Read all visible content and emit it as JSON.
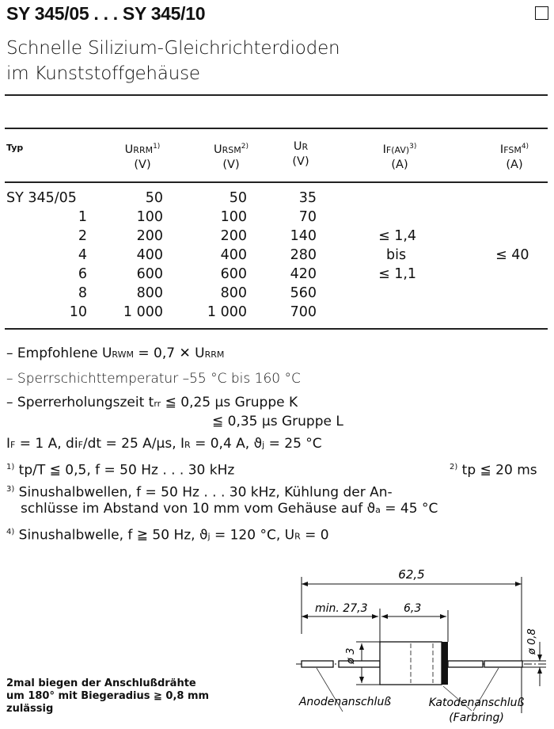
{
  "header": {
    "title": "SY 345/05 . . . SY 345/10",
    "subtitle_line1": "Schnelle Silizium-Gleichrichterdioden",
    "subtitle_line2": "im Kunststoffgehäuse"
  },
  "table": {
    "columns": [
      {
        "symbol": "Typ",
        "sub": "",
        "sup": "",
        "unit": ""
      },
      {
        "symbol": "U",
        "sub": "RRM",
        "sup": "1)",
        "unit": "(V)"
      },
      {
        "symbol": "U",
        "sub": "RSM",
        "sup": "2)",
        "unit": "(V)"
      },
      {
        "symbol": "U",
        "sub": "R",
        "sup": "",
        "unit": "(V)"
      },
      {
        "symbol": "I",
        "sub": "F(AV)",
        "sup": "3)",
        "unit": "(A)"
      },
      {
        "symbol": "I",
        "sub": "FSM",
        "sup": "4)",
        "unit": "(A)"
      }
    ],
    "rows": [
      {
        "typ": "SY 345/05",
        "urrm": "50",
        "ursm": "50",
        "ur": "35"
      },
      {
        "typ": "1",
        "urrm": "100",
        "ursm": "100",
        "ur": "70"
      },
      {
        "typ": "2",
        "urrm": "200",
        "ursm": "200",
        "ur": "140"
      },
      {
        "typ": "4",
        "urrm": "400",
        "ursm": "400",
        "ur": "280"
      },
      {
        "typ": "6",
        "urrm": "600",
        "ursm": "600",
        "ur": "420"
      },
      {
        "typ": "8",
        "urrm": "800",
        "ursm": "800",
        "ur": "560"
      },
      {
        "typ": "10",
        "urrm": "1 000",
        "ursm": "1 000",
        "ur": "700"
      }
    ],
    "ifav": [
      "≤ 1,4",
      "bis",
      "≤ 1,1"
    ],
    "ifsm": "≤ 40"
  },
  "notes": {
    "n1": {
      "a": "– Empfohlene U",
      "s1": "RWM",
      "b": " = 0,7 ✕ U",
      "s2": "RRM"
    },
    "n2": "– Sperrschichttemperatur –55 °C bis 160 °C",
    "n3a": {
      "a": "– Sperrerholungszeit t",
      "s": "rr",
      "b": " ≦ 0,25 µs Gruppe K"
    },
    "n3b": "≦ 0,35 µs Gruppe L",
    "n4": {
      "a": "I",
      "s1": "F",
      "b": " = 1 A, di",
      "s2": "F",
      "c": "/dt = 25 A/µs, I",
      "s3": "R",
      "d": " = 0,4 A, ϑ",
      "s4": "j",
      "e": " = 25 °C"
    },
    "f1": {
      "mark": "1)",
      "text": " tp/T ≦ 0,5, f = 50 Hz . . . 30 kHz"
    },
    "f2": {
      "mark": "2)",
      "text": " tp ≦ 20 ms"
    },
    "f3": {
      "mark": "3)",
      "line1": " Sinushalbwellen,   f = 50 Hz . . . 30 kHz,   Kühlung   der   An-",
      "line2a": "schlüsse im Abstand von 10 mm vom Gehäuse auf ϑ",
      "s": "a",
      "line2b": " = 45 °C"
    },
    "f4": {
      "mark": "4)",
      "a": " Sinushalbwelle, f ≧ 50 Hz, ϑ",
      "s1": "j",
      "b": " = 120 °C, U",
      "s2": "R",
      "c": " = 0"
    }
  },
  "bending_note": [
    "2mal biegen der Anschlußdrähte",
    "um 180° mit Biegeradius ≧ 0,8 mm",
    "zulässig"
  ],
  "drawing": {
    "total_length": "62,5",
    "lead_length": "min. 27,3",
    "body_length": "6,3",
    "body_diameter": "ø 3",
    "lead_diameter": "ø 0,8",
    "anode_label": "Anodenanschluß",
    "cathode_label": "Katodenanschluß",
    "cathode_sub": "(Farbring)"
  }
}
